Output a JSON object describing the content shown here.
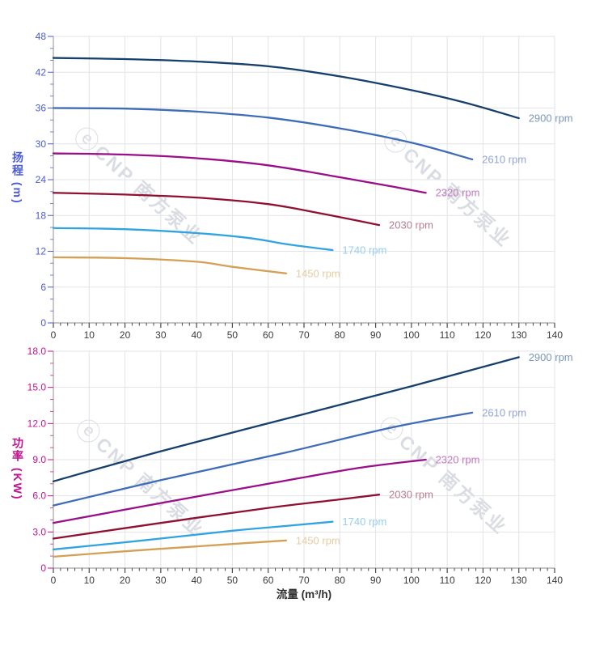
{
  "watermark": {
    "logo_glyph": "ⓔ",
    "text": "CNP 南方泵业",
    "color": "#b4bac7"
  },
  "x_axis": {
    "title": "流量 (m³/h)",
    "min": 0,
    "max": 140,
    "major_step": 10,
    "minor_step": 2,
    "tick_labels": [
      "0",
      "10",
      "20",
      "30",
      "40",
      "50",
      "60",
      "70",
      "80",
      "90",
      "100",
      "110",
      "120",
      "130",
      "140"
    ],
    "tick_label_color": "#3a3a3a",
    "title_color": "#2f2f2f",
    "tick_color": "#4a4a4a",
    "spine_color": "#a3a3a3",
    "grid_color": "#e3e3e8"
  },
  "chart_data": [
    {
      "type": "line",
      "title": "",
      "xlabel": "流量 (m³/h)",
      "ylabel": "扬程 (m)",
      "xlim": [
        0,
        140
      ],
      "ylim": [
        0,
        48
      ],
      "y_major": 6,
      "y_minor": 2,
      "y_tick_labels": [
        "0",
        "6",
        "12",
        "18",
        "24",
        "30",
        "36",
        "42",
        "48"
      ],
      "axis_color": "#4a5bd5",
      "grid": true,
      "legend_position": "end-of-line",
      "series": [
        {
          "name": "2900 rpm",
          "color": "#153f6d",
          "label_color": "#7b97bc",
          "points": [
            [
              0,
              44.4
            ],
            [
              20,
              44.2
            ],
            [
              40,
              43.8
            ],
            [
              60,
              43.0
            ],
            [
              80,
              41.3
            ],
            [
              100,
              39.0
            ],
            [
              115,
              36.9
            ],
            [
              130,
              34.3
            ]
          ]
        },
        {
          "name": "2610 rpm",
          "color": "#3f6cb8",
          "label_color": "#93a3da",
          "points": [
            [
              0,
              36.0
            ],
            [
              20,
              35.9
            ],
            [
              40,
              35.4
            ],
            [
              60,
              34.4
            ],
            [
              80,
              32.6
            ],
            [
              100,
              30.2
            ],
            [
              117,
              27.4
            ]
          ]
        },
        {
          "name": "2320 rpm",
          "color": "#9a0e88",
          "label_color": "#c279c1",
          "points": [
            [
              0,
              28.4
            ],
            [
              20,
              28.2
            ],
            [
              40,
              27.6
            ],
            [
              60,
              26.4
            ],
            [
              80,
              24.4
            ],
            [
              95,
              22.8
            ],
            [
              104,
              21.8
            ]
          ]
        },
        {
          "name": "2030 rpm",
          "color": "#8f1031",
          "label_color": "#b57e92",
          "points": [
            [
              0,
              21.8
            ],
            [
              20,
              21.5
            ],
            [
              40,
              21.0
            ],
            [
              60,
              19.9
            ],
            [
              75,
              18.3
            ],
            [
              91,
              16.4
            ]
          ]
        },
        {
          "name": "1740 rpm",
          "color": "#31a3e1",
          "label_color": "#97cdef",
          "points": [
            [
              0,
              15.9
            ],
            [
              20,
              15.7
            ],
            [
              40,
              15.05
            ],
            [
              55,
              14.2
            ],
            [
              65,
              13.2
            ],
            [
              78,
              12.2
            ]
          ]
        },
        {
          "name": "1450 rpm",
          "color": "#d3a055",
          "label_color": "#e7cba2",
          "points": [
            [
              0,
              11.0
            ],
            [
              20,
              10.85
            ],
            [
              40,
              10.25
            ],
            [
              50,
              9.4
            ],
            [
              65,
              8.3
            ]
          ]
        }
      ]
    },
    {
      "type": "line",
      "title": "",
      "xlabel": "流量 (m³/h)",
      "ylabel": "功率 (KW)",
      "xlim": [
        0,
        140
      ],
      "ylim": [
        0,
        18
      ],
      "y_major": 3,
      "y_minor": 1,
      "y_tick_labels": [
        "0",
        "3.0",
        "6.0",
        "9.0",
        "12.0",
        "15.0",
        "18.0"
      ],
      "axis_color": "#c3128f",
      "grid": true,
      "legend_position": "end-of-line",
      "series": [
        {
          "name": "2900 rpm",
          "color": "#153f6d",
          "label_color": "#7b97bc",
          "points": [
            [
              0,
              7.2
            ],
            [
              30,
              9.7
            ],
            [
              65,
              12.4
            ],
            [
              100,
              15.1
            ],
            [
              130,
              17.5
            ]
          ]
        },
        {
          "name": "2610 rpm",
          "color": "#3f6cb8",
          "label_color": "#93a3da",
          "points": [
            [
              0,
              5.2
            ],
            [
              30,
              7.3
            ],
            [
              65,
              9.6
            ],
            [
              95,
              11.7
            ],
            [
              117,
              12.9
            ]
          ]
        },
        {
          "name": "2320 rpm",
          "color": "#9a0e88",
          "label_color": "#c279c1",
          "points": [
            [
              0,
              3.75
            ],
            [
              30,
              5.4
            ],
            [
              60,
              7.0
            ],
            [
              85,
              8.3
            ],
            [
              104,
              9.0
            ]
          ]
        },
        {
          "name": "2030 rpm",
          "color": "#8f1031",
          "label_color": "#b57e92",
          "points": [
            [
              0,
              2.45
            ],
            [
              30,
              3.75
            ],
            [
              60,
              5.0
            ],
            [
              80,
              5.7
            ],
            [
              91,
              6.1
            ]
          ]
        },
        {
          "name": "1740 rpm",
          "color": "#31a3e1",
          "label_color": "#97cdef",
          "points": [
            [
              0,
              1.55
            ],
            [
              25,
              2.3
            ],
            [
              50,
              3.1
            ],
            [
              65,
              3.5
            ],
            [
              78,
              3.85
            ]
          ]
        },
        {
          "name": "1450 rpm",
          "color": "#d3a055",
          "label_color": "#e7cba2",
          "points": [
            [
              0,
              0.95
            ],
            [
              20,
              1.4
            ],
            [
              40,
              1.8
            ],
            [
              55,
              2.1
            ],
            [
              65,
              2.3
            ]
          ]
        }
      ]
    }
  ]
}
